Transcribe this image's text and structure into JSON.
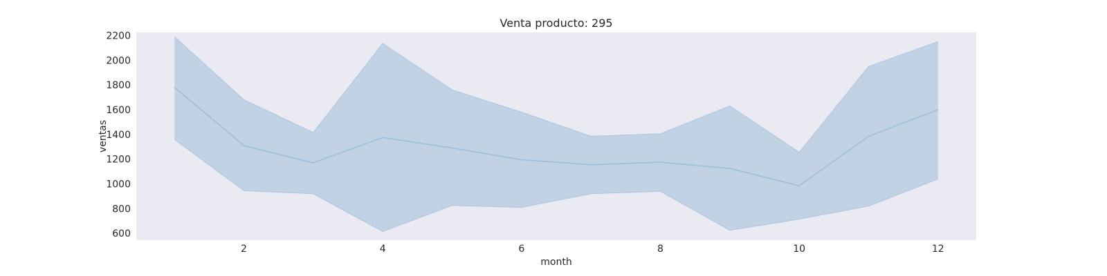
{
  "chart_data": {
    "type": "area",
    "title": "Venta producto: 295",
    "xlabel": "month",
    "ylabel": "ventas",
    "xlim": [
      0.45,
      12.55
    ],
    "ylim": [
      545,
      2225
    ],
    "xticks": [
      2,
      4,
      6,
      8,
      10,
      12
    ],
    "yticks": [
      600,
      800,
      1000,
      1200,
      1400,
      1600,
      1800,
      2000,
      2200
    ],
    "grid": false,
    "legend": "none",
    "x": [
      1,
      2,
      3,
      4,
      5,
      6,
      7,
      8,
      9,
      10,
      11,
      12
    ],
    "series": [
      {
        "values": [
          1780,
          1310,
          1170,
          1375,
          1290,
          1195,
          1155,
          1175,
          1125,
          985,
          1385,
          1600
        ],
        "band_upper": [
          2190,
          1680,
          1415,
          2135,
          1760,
          1580,
          1385,
          1405,
          1630,
          1255,
          1950,
          2150
        ],
        "band_lower": [
          1360,
          945,
          920,
          615,
          825,
          810,
          920,
          940,
          625,
          715,
          820,
          1040
        ]
      }
    ],
    "colors": {
      "background": "#eaeaf2",
      "line": "#9dbdd8",
      "band_fill": "#c1d2e4",
      "band_edge": "#a9c4dc"
    }
  }
}
